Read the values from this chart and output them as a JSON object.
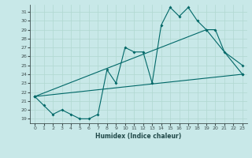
{
  "xlabel": "Humidex (Indice chaleur)",
  "ylabel": "",
  "background_color": "#c8e8e8",
  "grid_color": "#b0d8d0",
  "line_color": "#006868",
  "xlim": [
    -0.5,
    23.5
  ],
  "ylim": [
    18.5,
    31.8
  ],
  "xticks": [
    0,
    1,
    2,
    3,
    4,
    5,
    6,
    7,
    8,
    9,
    10,
    11,
    12,
    13,
    14,
    15,
    16,
    17,
    18,
    19,
    20,
    21,
    22,
    23
  ],
  "yticks": [
    19,
    20,
    21,
    22,
    23,
    24,
    25,
    26,
    27,
    28,
    29,
    30,
    31
  ],
  "x_main": [
    0,
    1,
    2,
    3,
    4,
    5,
    6,
    7,
    8,
    9,
    10,
    11,
    12,
    13,
    14,
    15,
    16,
    17,
    18,
    19,
    20,
    21,
    23
  ],
  "y_main_vals": [
    21.5,
    20.5,
    19.5,
    20.0,
    19.5,
    19.0,
    19.0,
    19.5,
    24.5,
    23.0,
    27.0,
    26.5,
    26.5,
    23.0,
    29.5,
    31.5,
    30.5,
    31.5,
    30.0,
    29.0,
    29.0,
    26.5,
    25.0
  ],
  "line2_x": [
    0,
    19,
    23
  ],
  "line2_y": [
    21.5,
    29.0,
    24.0
  ],
  "line3_x": [
    0,
    23
  ],
  "line3_y": [
    21.5,
    24.0
  ],
  "xlabel_fontsize": 5.5,
  "tick_fontsize": 4.5,
  "spine_color": "#405050"
}
